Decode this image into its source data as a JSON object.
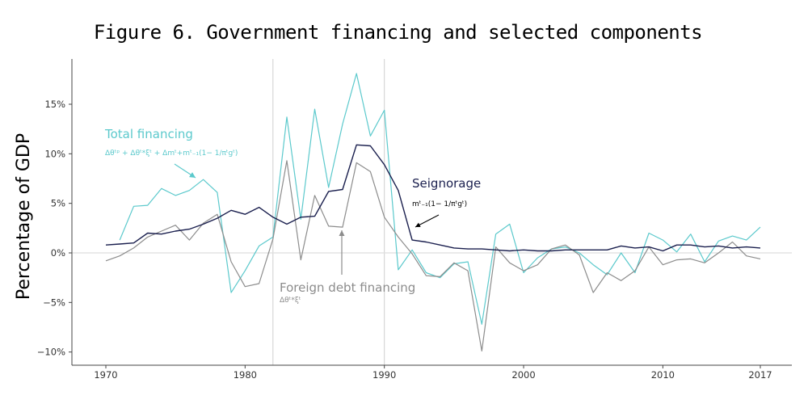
{
  "chart_data": {
    "type": "line",
    "title": "Figure 6. Government financing and selected components",
    "xlabel": "",
    "ylabel": "Percentage of GDP",
    "xlim": [
      1968,
      2019
    ],
    "ylim": [
      -11,
      20
    ],
    "x_ticks": [
      1970,
      1980,
      1990,
      2000,
      2010,
      2017
    ],
    "x_tick_labels": [
      "1970",
      "1980",
      "1990",
      "2000",
      "2010",
      "2017"
    ],
    "y_ticks": [
      -10,
      -5,
      0,
      5,
      10,
      15
    ],
    "y_tick_labels": [
      "−10%",
      "−5%",
      "0%",
      "5%",
      "10%",
      "15%"
    ],
    "vertical_lines": [
      1982,
      1990
    ],
    "grid": false,
    "series": [
      {
        "name": "Total financing",
        "color": "#5bc9cc",
        "x": [
          1971,
          1972,
          1973,
          1974,
          1975,
          1976,
          1977,
          1978,
          1979,
          1980,
          1981,
          1982,
          1983,
          1984,
          1985,
          1986,
          1987,
          1988,
          1989,
          1990,
          1991,
          1992,
          1993,
          1994,
          1995,
          1996,
          1997,
          1998,
          1999,
          2000,
          2001,
          2002,
          2003,
          2004,
          2005,
          2006,
          2007,
          2008,
          2009,
          2010,
          2011,
          2012,
          2013,
          2014,
          2015,
          2016,
          2017
        ],
        "values": [
          1.3,
          4.7,
          4.8,
          6.5,
          5.8,
          6.3,
          7.4,
          6.1,
          -4.0,
          -1.8,
          0.7,
          1.6,
          13.7,
          3.4,
          14.5,
          6.6,
          13.0,
          18.1,
          11.8,
          14.4,
          -1.7,
          0.3,
          -2.0,
          -2.5,
          -1.1,
          -0.9,
          -7.2,
          1.9,
          2.9,
          -2.0,
          -0.5,
          0.4,
          0.6,
          0.0,
          -1.2,
          -2.2,
          0.0,
          -2.0,
          2.0,
          1.3,
          0.1,
          1.9,
          -0.9,
          1.2,
          1.7,
          1.3,
          2.6
        ]
      },
      {
        "name": "Seignorage",
        "color": "#1a1f4e",
        "x": [
          1970,
          1971,
          1972,
          1973,
          1974,
          1975,
          1976,
          1977,
          1978,
          1979,
          1980,
          1981,
          1982,
          1983,
          1984,
          1985,
          1986,
          1987,
          1988,
          1989,
          1990,
          1991,
          1992,
          1993,
          1994,
          1995,
          1996,
          1997,
          1998,
          1999,
          2000,
          2001,
          2002,
          2003,
          2004,
          2005,
          2006,
          2007,
          2008,
          2009,
          2010,
          2011,
          2012,
          2013,
          2014,
          2015,
          2016,
          2017
        ],
        "values": [
          0.8,
          0.9,
          1.0,
          2.0,
          1.9,
          2.2,
          2.4,
          2.9,
          3.5,
          4.3,
          3.9,
          4.6,
          3.6,
          2.9,
          3.6,
          3.7,
          6.2,
          6.4,
          10.9,
          10.8,
          8.9,
          6.3,
          1.3,
          1.1,
          0.8,
          0.5,
          0.4,
          0.4,
          0.3,
          0.2,
          0.3,
          0.2,
          0.2,
          0.3,
          0.3,
          0.3,
          0.3,
          0.7,
          0.5,
          0.6,
          0.2,
          0.8,
          0.8,
          0.6,
          0.7,
          0.5,
          0.6,
          0.5
        ]
      },
      {
        "name": "Foreign debt financing",
        "color": "#8c8c8c",
        "x": [
          1970,
          1971,
          1972,
          1973,
          1974,
          1975,
          1976,
          1977,
          1978,
          1979,
          1980,
          1981,
          1982,
          1983,
          1984,
          1985,
          1986,
          1987,
          1988,
          1989,
          1990,
          1991,
          1992,
          1993,
          1994,
          1995,
          1996,
          1997,
          1998,
          1999,
          2000,
          2001,
          2002,
          2003,
          2004,
          2005,
          2006,
          2007,
          2008,
          2009,
          2010,
          2011,
          2012,
          2013,
          2014,
          2015,
          2016,
          2017
        ],
        "values": [
          -0.8,
          -0.3,
          0.5,
          1.6,
          2.2,
          2.8,
          1.3,
          3.0,
          3.9,
          -0.9,
          -3.4,
          -3.1,
          1.4,
          9.3,
          -0.7,
          5.8,
          2.7,
          2.6,
          9.1,
          8.2,
          3.6,
          1.6,
          -0.1,
          -2.3,
          -2.4,
          -1.0,
          -1.8,
          -9.9,
          0.6,
          -1.0,
          -1.8,
          -1.2,
          0.4,
          0.8,
          -0.2,
          -4.0,
          -2.0,
          -2.8,
          -1.8,
          0.6,
          -1.2,
          -0.7,
          -0.6,
          -1.0,
          0.0,
          1.1,
          -0.3,
          -0.6
        ]
      }
    ],
    "annotations": [
      {
        "label": "Total financing",
        "formula": "Δθᵗᵖ + Δθᵗ*ξᵗ + Δmᵗ+mᵗ₋₁(1− 1/πᵗgᵗ)",
        "color": "#5bc9cc"
      },
      {
        "label": "Seignorage",
        "formula": "mᵗ₋₁(1− 1/πᵗgᵗ)",
        "color": "#1a1f4e"
      },
      {
        "label": "Foreign debt financing",
        "formula": "Δθᵗ*ξᵗ",
        "color": "#8c8c8c"
      }
    ]
  },
  "colors": {
    "axis": "#444444",
    "zero_line": "#dddddd",
    "vline": "#d0d0d0"
  }
}
